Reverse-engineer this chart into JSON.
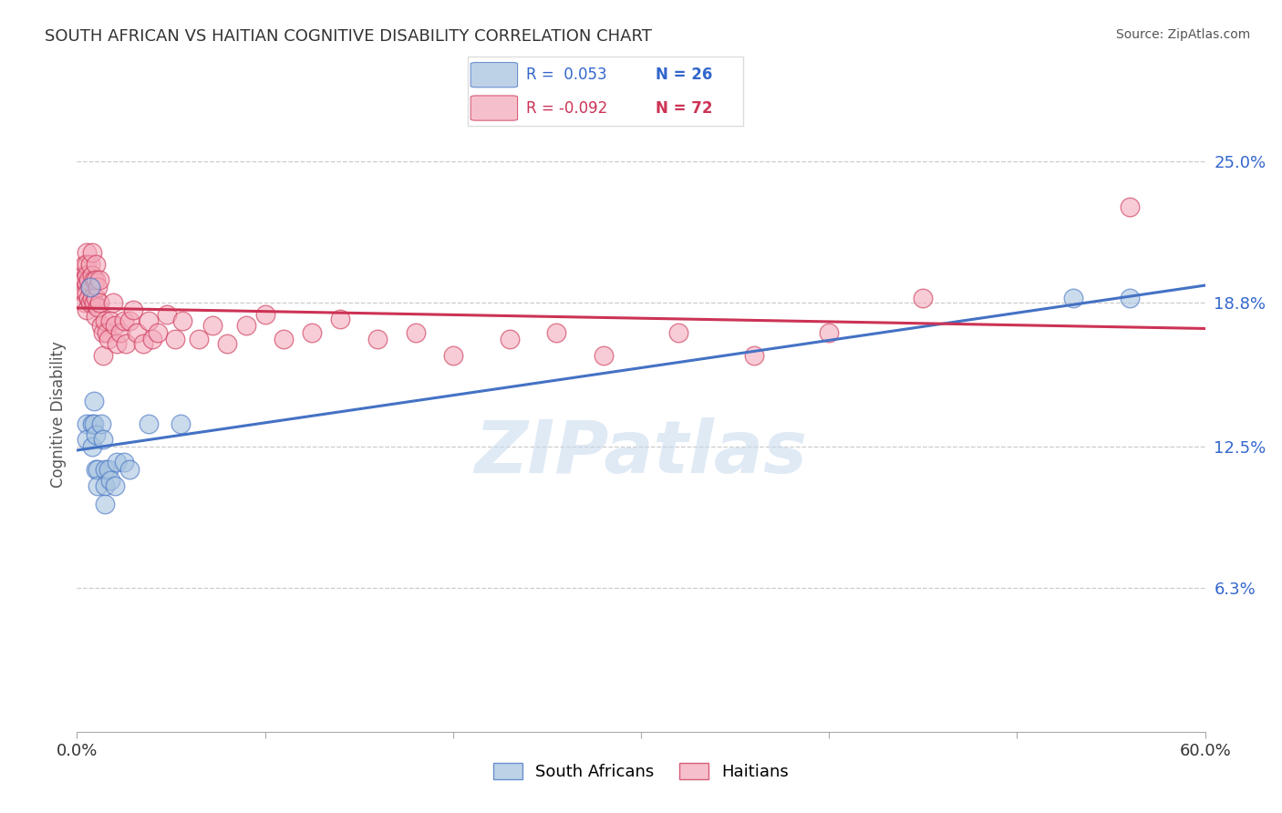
{
  "title": "SOUTH AFRICAN VS HAITIAN COGNITIVE DISABILITY CORRELATION CHART",
  "source": "Source: ZipAtlas.com",
  "ylabel": "Cognitive Disability",
  "watermark": "ZIPatlas",
  "blue_color": "#A8C4E0",
  "pink_color": "#F4AABB",
  "blue_line_color": "#4472C4",
  "pink_line_color": "#CC3355",
  "blue_edge_color": "#4472C4",
  "pink_edge_color": "#CC3355",
  "xmin": 0.0,
  "xmax": 0.6,
  "ymin": 0.0,
  "ymax": 0.278,
  "ytick_vals": [
    0.063,
    0.125,
    0.188,
    0.25
  ],
  "ytick_labels": [
    "6.3%",
    "12.5%",
    "18.8%",
    "25.0%"
  ],
  "xtick_vals": [
    0.0,
    0.1,
    0.2,
    0.3,
    0.4,
    0.5,
    0.6
  ],
  "blue_scatter_x": [
    0.005,
    0.005,
    0.007,
    0.008,
    0.008,
    0.009,
    0.009,
    0.01,
    0.01,
    0.011,
    0.011,
    0.013,
    0.014,
    0.015,
    0.015,
    0.015,
    0.017,
    0.018,
    0.02,
    0.021,
    0.025,
    0.028,
    0.038,
    0.055,
    0.53,
    0.56
  ],
  "blue_scatter_y": [
    0.135,
    0.128,
    0.195,
    0.135,
    0.125,
    0.135,
    0.145,
    0.13,
    0.115,
    0.115,
    0.108,
    0.135,
    0.128,
    0.115,
    0.108,
    0.1,
    0.115,
    0.11,
    0.108,
    0.118,
    0.118,
    0.115,
    0.135,
    0.135,
    0.19,
    0.19
  ],
  "pink_scatter_x": [
    0.003,
    0.003,
    0.004,
    0.004,
    0.004,
    0.004,
    0.005,
    0.005,
    0.005,
    0.005,
    0.005,
    0.005,
    0.006,
    0.006,
    0.007,
    0.007,
    0.007,
    0.008,
    0.008,
    0.008,
    0.009,
    0.009,
    0.01,
    0.01,
    0.01,
    0.01,
    0.011,
    0.011,
    0.012,
    0.012,
    0.013,
    0.014,
    0.014,
    0.015,
    0.016,
    0.017,
    0.018,
    0.019,
    0.02,
    0.021,
    0.023,
    0.025,
    0.026,
    0.028,
    0.03,
    0.032,
    0.035,
    0.038,
    0.04,
    0.043,
    0.048,
    0.052,
    0.056,
    0.065,
    0.072,
    0.08,
    0.09,
    0.1,
    0.11,
    0.125,
    0.14,
    0.16,
    0.18,
    0.2,
    0.23,
    0.255,
    0.28,
    0.32,
    0.36,
    0.4,
    0.45,
    0.56
  ],
  "pink_scatter_y": [
    0.2,
    0.198,
    0.205,
    0.198,
    0.192,
    0.188,
    0.21,
    0.205,
    0.2,
    0.196,
    0.192,
    0.185,
    0.198,
    0.19,
    0.205,
    0.195,
    0.188,
    0.21,
    0.2,
    0.19,
    0.198,
    0.188,
    0.205,
    0.198,
    0.19,
    0.182,
    0.195,
    0.186,
    0.198,
    0.188,
    0.178,
    0.165,
    0.175,
    0.18,
    0.175,
    0.172,
    0.18,
    0.188,
    0.178,
    0.17,
    0.175,
    0.18,
    0.17,
    0.18,
    0.185,
    0.175,
    0.17,
    0.18,
    0.172,
    0.175,
    0.183,
    0.172,
    0.18,
    0.172,
    0.178,
    0.17,
    0.178,
    0.183,
    0.172,
    0.175,
    0.181,
    0.172,
    0.175,
    0.165,
    0.172,
    0.175,
    0.165,
    0.175,
    0.165,
    0.175,
    0.19,
    0.23
  ]
}
